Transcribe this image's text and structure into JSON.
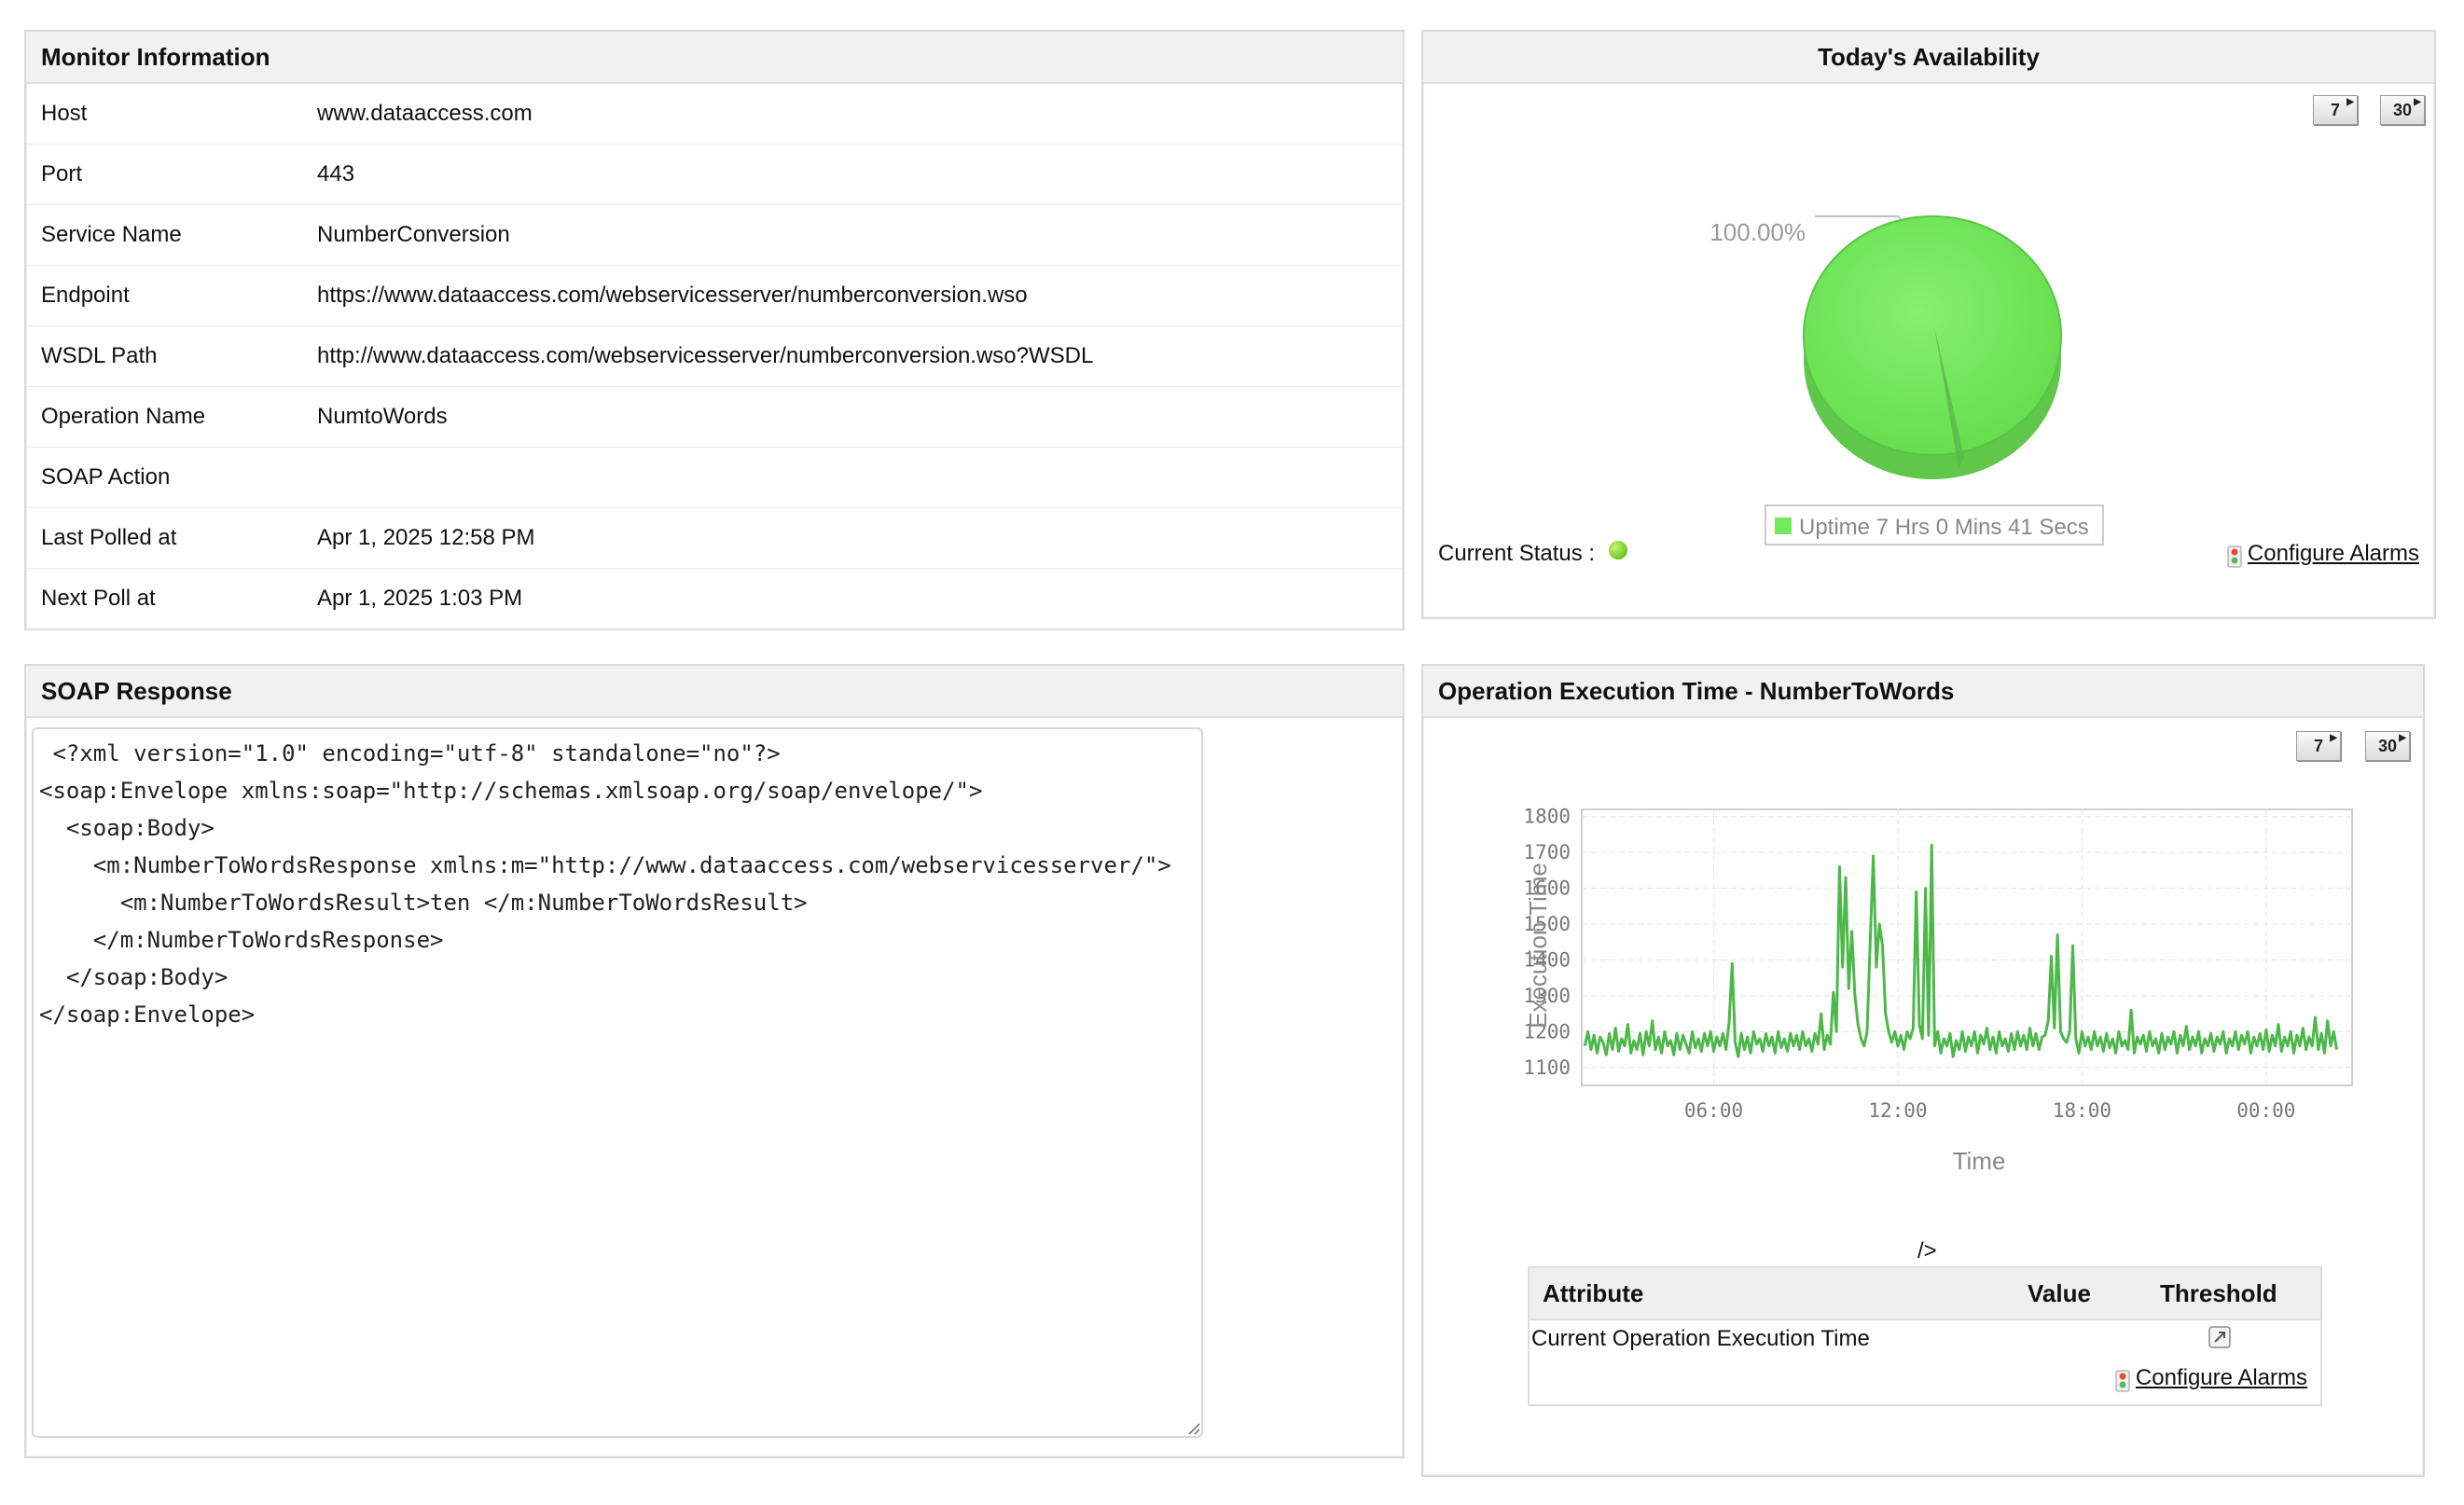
{
  "monitor_info": {
    "title": "Monitor Information",
    "rows": [
      {
        "label": "Host",
        "value": "www.dataaccess.com"
      },
      {
        "label": "Port",
        "value": "443"
      },
      {
        "label": "Service Name",
        "value": "NumberConversion"
      },
      {
        "label": "Endpoint",
        "value": "https://www.dataaccess.com/webservicesserver/numberconversion.wso"
      },
      {
        "label": "WSDL Path",
        "value": "http://www.dataaccess.com/webservicesserver/numberconversion.wso?WSDL"
      },
      {
        "label": "Operation Name",
        "value": "NumtoWords"
      },
      {
        "label": "SOAP Action",
        "value": ""
      },
      {
        "label": "Last Polled at",
        "value": "Apr 1, 2025 12:58 PM"
      },
      {
        "label": "Next Poll at",
        "value": "Apr 1, 2025 1:03 PM"
      }
    ]
  },
  "availability": {
    "title": "Today's Availability",
    "period_buttons": [
      "7",
      "30"
    ],
    "pie_label": "100.00%",
    "legend": "Uptime 7 Hrs 0 Mins 41 Secs",
    "uptime_percent": 100,
    "current_status_label": "Current Status :",
    "status_color": "#7bd02a",
    "pie_color": "#72ea5a",
    "configure_alarms": "Configure Alarms"
  },
  "soap_response": {
    "title": "SOAP Response",
    "content": " <?xml version=\"1.0\" encoding=\"utf-8\" standalone=\"no\"?>\n<soap:Envelope xmlns:soap=\"http://schemas.xmlsoap.org/soap/envelope/\">\n  <soap:Body>\n    <m:NumberToWordsResponse xmlns:m=\"http://www.dataaccess.com/webservicesserver/\">\n      <m:NumberToWordsResult>ten </m:NumberToWordsResult>\n    </m:NumberToWordsResponse>\n  </soap:Body>\n</soap:Envelope>"
  },
  "execution_time": {
    "title": "Operation Execution Time - NumberToWords",
    "period_buttons": [
      "7",
      "30"
    ],
    "stray_text": "/>",
    "table": {
      "headers": [
        "Attribute",
        "Value",
        "Threshold"
      ],
      "row_attribute": "Current Operation Execution Time",
      "row_value": "",
      "configure_alarms": "Configure Alarms"
    }
  },
  "chart_data": {
    "type": "line",
    "title": "",
    "xlabel": "Time",
    "ylabel": "Execution Time",
    "x_ticks": [
      "06:00",
      "12:00",
      "18:00",
      "00:00"
    ],
    "x_range_hours": [
      1.7,
      26.8
    ],
    "y_ticks": [
      1100,
      1200,
      1300,
      1400,
      1500,
      1600,
      1700,
      1800
    ],
    "ylim": [
      1050,
      1820
    ],
    "grid": true,
    "line_color": "#4cb84a",
    "series": [
      {
        "points": [
          [
            1.8,
            1160
          ],
          [
            1.9,
            1200
          ],
          [
            2.0,
            1150
          ],
          [
            2.1,
            1190
          ],
          [
            2.2,
            1140
          ],
          [
            2.3,
            1185
          ],
          [
            2.4,
            1170
          ],
          [
            2.5,
            1135
          ],
          [
            2.6,
            1195
          ],
          [
            2.7,
            1150
          ],
          [
            2.8,
            1210
          ],
          [
            2.9,
            1145
          ],
          [
            3.0,
            1180
          ],
          [
            3.1,
            1160
          ],
          [
            3.2,
            1220
          ],
          [
            3.3,
            1140
          ],
          [
            3.4,
            1175
          ],
          [
            3.5,
            1150
          ],
          [
            3.6,
            1195
          ],
          [
            3.7,
            1135
          ],
          [
            3.8,
            1200
          ],
          [
            3.9,
            1160
          ],
          [
            4.0,
            1230
          ],
          [
            4.1,
            1150
          ],
          [
            4.2,
            1185
          ],
          [
            4.3,
            1140
          ],
          [
            4.4,
            1200
          ],
          [
            4.5,
            1160
          ],
          [
            4.6,
            1175
          ],
          [
            4.7,
            1135
          ],
          [
            4.8,
            1195
          ],
          [
            4.9,
            1150
          ],
          [
            5.0,
            1190
          ],
          [
            5.1,
            1165
          ],
          [
            5.2,
            1140
          ],
          [
            5.3,
            1200
          ],
          [
            5.4,
            1155
          ],
          [
            5.5,
            1180
          ],
          [
            5.6,
            1145
          ],
          [
            5.7,
            1195
          ],
          [
            5.8,
            1160
          ],
          [
            5.9,
            1200
          ],
          [
            6.0,
            1145
          ],
          [
            6.1,
            1185
          ],
          [
            6.2,
            1160
          ],
          [
            6.3,
            1195
          ],
          [
            6.4,
            1150
          ],
          [
            6.5,
            1225
          ],
          [
            6.6,
            1390
          ],
          [
            6.7,
            1170
          ],
          [
            6.8,
            1130
          ],
          [
            6.9,
            1195
          ],
          [
            7.0,
            1150
          ],
          [
            7.1,
            1185
          ],
          [
            7.2,
            1140
          ],
          [
            7.3,
            1200
          ],
          [
            7.4,
            1165
          ],
          [
            7.5,
            1180
          ],
          [
            7.6,
            1145
          ],
          [
            7.7,
            1195
          ],
          [
            7.8,
            1160
          ],
          [
            7.9,
            1185
          ],
          [
            8.0,
            1140
          ],
          [
            8.1,
            1200
          ],
          [
            8.2,
            1155
          ],
          [
            8.3,
            1180
          ],
          [
            8.4,
            1145
          ],
          [
            8.5,
            1195
          ],
          [
            8.6,
            1160
          ],
          [
            8.7,
            1190
          ],
          [
            8.8,
            1150
          ],
          [
            8.9,
            1200
          ],
          [
            9.0,
            1160
          ],
          [
            9.1,
            1180
          ],
          [
            9.2,
            1145
          ],
          [
            9.3,
            1195
          ],
          [
            9.4,
            1165
          ],
          [
            9.5,
            1250
          ],
          [
            9.6,
            1150
          ],
          [
            9.7,
            1190
          ],
          [
            9.8,
            1165
          ],
          [
            9.9,
            1310
          ],
          [
            10.0,
            1200
          ],
          [
            10.1,
            1660
          ],
          [
            10.2,
            1380
          ],
          [
            10.3,
            1630
          ],
          [
            10.4,
            1320
          ],
          [
            10.5,
            1480
          ],
          [
            10.6,
            1300
          ],
          [
            10.7,
            1220
          ],
          [
            10.8,
            1180
          ],
          [
            10.9,
            1160
          ],
          [
            11.0,
            1200
          ],
          [
            11.1,
            1450
          ],
          [
            11.2,
            1690
          ],
          [
            11.3,
            1380
          ],
          [
            11.4,
            1500
          ],
          [
            11.5,
            1440
          ],
          [
            11.6,
            1250
          ],
          [
            11.7,
            1200
          ],
          [
            11.8,
            1170
          ],
          [
            11.9,
            1200
          ],
          [
            12.0,
            1160
          ],
          [
            12.1,
            1190
          ],
          [
            12.2,
            1150
          ],
          [
            12.3,
            1200
          ],
          [
            12.4,
            1180
          ],
          [
            12.5,
            1210
          ],
          [
            12.6,
            1590
          ],
          [
            12.7,
            1220
          ],
          [
            12.8,
            1180
          ],
          [
            12.9,
            1600
          ],
          [
            13.0,
            1190
          ],
          [
            13.1,
            1720
          ],
          [
            13.2,
            1160
          ],
          [
            13.3,
            1200
          ],
          [
            13.4,
            1140
          ],
          [
            13.5,
            1180
          ],
          [
            13.6,
            1160
          ],
          [
            13.7,
            1195
          ],
          [
            13.8,
            1130
          ],
          [
            13.9,
            1175
          ],
          [
            14.0,
            1150
          ],
          [
            14.1,
            1200
          ],
          [
            14.2,
            1145
          ],
          [
            14.3,
            1185
          ],
          [
            14.4,
            1160
          ],
          [
            14.5,
            1200
          ],
          [
            14.6,
            1140
          ],
          [
            14.7,
            1190
          ],
          [
            14.8,
            1165
          ],
          [
            14.9,
            1210
          ],
          [
            15.0,
            1150
          ],
          [
            15.1,
            1185
          ],
          [
            15.2,
            1140
          ],
          [
            15.3,
            1200
          ],
          [
            15.4,
            1160
          ],
          [
            15.5,
            1180
          ],
          [
            15.6,
            1145
          ],
          [
            15.7,
            1195
          ],
          [
            15.8,
            1150
          ],
          [
            15.9,
            1200
          ],
          [
            16.0,
            1160
          ],
          [
            16.1,
            1190
          ],
          [
            16.2,
            1150
          ],
          [
            16.3,
            1210
          ],
          [
            16.4,
            1160
          ],
          [
            16.5,
            1195
          ],
          [
            16.6,
            1150
          ],
          [
            16.7,
            1185
          ],
          [
            16.8,
            1190
          ],
          [
            16.9,
            1230
          ],
          [
            17.0,
            1410
          ],
          [
            17.1,
            1210
          ],
          [
            17.2,
            1470
          ],
          [
            17.3,
            1200
          ],
          [
            17.4,
            1180
          ],
          [
            17.5,
            1170
          ],
          [
            17.6,
            1200
          ],
          [
            17.7,
            1440
          ],
          [
            17.8,
            1180
          ],
          [
            17.9,
            1140
          ],
          [
            18.0,
            1200
          ],
          [
            18.1,
            1160
          ],
          [
            18.2,
            1185
          ],
          [
            18.3,
            1150
          ],
          [
            18.4,
            1200
          ],
          [
            18.5,
            1160
          ],
          [
            18.6,
            1185
          ],
          [
            18.7,
            1145
          ],
          [
            18.8,
            1195
          ],
          [
            18.9,
            1155
          ],
          [
            19.0,
            1180
          ],
          [
            19.1,
            1140
          ],
          [
            19.2,
            1200
          ],
          [
            19.3,
            1160
          ],
          [
            19.4,
            1175
          ],
          [
            19.5,
            1150
          ],
          [
            19.6,
            1260
          ],
          [
            19.7,
            1140
          ],
          [
            19.8,
            1185
          ],
          [
            19.9,
            1165
          ],
          [
            20.0,
            1190
          ],
          [
            20.1,
            1145
          ],
          [
            20.2,
            1200
          ],
          [
            20.3,
            1160
          ],
          [
            20.4,
            1180
          ],
          [
            20.5,
            1140
          ],
          [
            20.6,
            1195
          ],
          [
            20.7,
            1150
          ],
          [
            20.8,
            1185
          ],
          [
            20.9,
            1165
          ],
          [
            21.0,
            1200
          ],
          [
            21.1,
            1140
          ],
          [
            21.2,
            1190
          ],
          [
            21.3,
            1160
          ],
          [
            21.4,
            1215
          ],
          [
            21.5,
            1150
          ],
          [
            21.6,
            1185
          ],
          [
            21.7,
            1160
          ],
          [
            21.8,
            1200
          ],
          [
            21.9,
            1140
          ],
          [
            22.0,
            1180
          ],
          [
            22.1,
            1160
          ],
          [
            22.2,
            1195
          ],
          [
            22.3,
            1145
          ],
          [
            22.4,
            1185
          ],
          [
            22.5,
            1165
          ],
          [
            22.6,
            1200
          ],
          [
            22.7,
            1140
          ],
          [
            22.8,
            1180
          ],
          [
            22.9,
            1160
          ],
          [
            23.0,
            1200
          ],
          [
            23.1,
            1150
          ],
          [
            23.2,
            1190
          ],
          [
            23.3,
            1165
          ],
          [
            23.4,
            1200
          ],
          [
            23.5,
            1140
          ],
          [
            23.6,
            1185
          ],
          [
            23.7,
            1160
          ],
          [
            23.8,
            1195
          ],
          [
            23.9,
            1150
          ],
          [
            24.0,
            1205
          ],
          [
            24.1,
            1145
          ],
          [
            24.2,
            1190
          ],
          [
            24.3,
            1160
          ],
          [
            24.4,
            1220
          ],
          [
            24.5,
            1145
          ],
          [
            24.6,
            1185
          ],
          [
            24.7,
            1160
          ],
          [
            24.8,
            1200
          ],
          [
            24.9,
            1140
          ],
          [
            25.0,
            1190
          ],
          [
            25.1,
            1160
          ],
          [
            25.2,
            1210
          ],
          [
            25.3,
            1150
          ],
          [
            25.4,
            1185
          ],
          [
            25.5,
            1160
          ],
          [
            25.6,
            1240
          ],
          [
            25.7,
            1150
          ],
          [
            25.8,
            1195
          ],
          [
            25.9,
            1140
          ],
          [
            26.0,
            1230
          ],
          [
            26.1,
            1160
          ],
          [
            26.2,
            1200
          ],
          [
            26.3,
            1150
          ]
        ]
      }
    ]
  }
}
